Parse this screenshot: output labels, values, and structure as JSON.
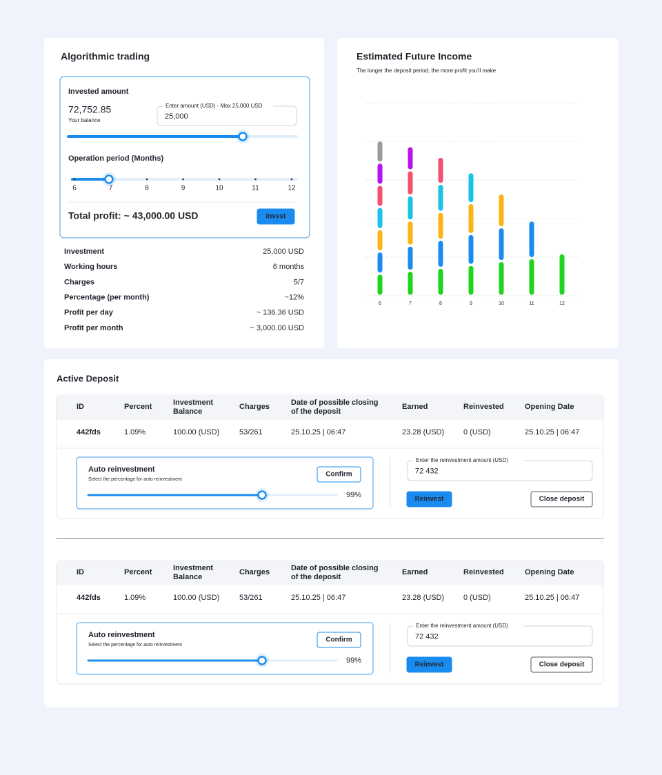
{
  "algorithmic_trading": {
    "title": "Algorithmic trading",
    "invested_amount": {
      "label": "Invested amount",
      "balance": "72,752.85",
      "balance_label": "Your balance",
      "input_label": "Enter amount (USD) - Max 25,000 USD",
      "input_value": "25,000"
    },
    "operation_period": {
      "label": "Operation period (Months)",
      "ticks": [
        "6",
        "7",
        "8",
        "9",
        "10",
        "11",
        "12"
      ]
    },
    "total_profit": {
      "label": "Total profit:",
      "value": "~ 43,000.00 USD"
    },
    "invest_button": "Invest",
    "details": [
      [
        "Investment",
        "25,000 USD"
      ],
      [
        "Working hours",
        "6 months"
      ],
      [
        "Charges",
        "5/7"
      ],
      [
        "Percentage (per month)",
        "~12%"
      ],
      [
        "Profit per day",
        "~ 136.36 USD"
      ],
      [
        "Profit per month",
        "~ 3,000.00 USD"
      ]
    ]
  },
  "chart_data": {
    "type": "bar",
    "stacked": true,
    "title": "Estimated Future Income",
    "subtitle": "The longer the deposit period, the more profit you'll make",
    "categories": [
      "6",
      "7",
      "8",
      "9",
      "10",
      "11",
      "12"
    ],
    "ylim": [
      0,
      100
    ],
    "series": [
      {
        "color": "#1ed41e",
        "values": [
          11.5,
          13,
          14.5,
          16,
          18,
          19.5,
          22
        ]
      },
      {
        "color": "#1a8cf0",
        "values": [
          11.5,
          13,
          14.5,
          16,
          17.5,
          19.5,
          null
        ]
      },
      {
        "color": "#fbb414",
        "values": [
          11.5,
          13,
          14.5,
          16,
          17.5,
          null,
          null
        ]
      },
      {
        "color": "#19c3e6",
        "values": [
          11.5,
          13,
          14.5,
          16,
          null,
          null,
          null
        ]
      },
      {
        "color": "#f5506e",
        "values": [
          11.5,
          13,
          14,
          null,
          null,
          null,
          null
        ]
      },
      {
        "color": "#b414f0",
        "values": [
          11.5,
          12.5,
          null,
          null,
          null,
          null,
          null
        ]
      },
      {
        "color": "#9a9a9a",
        "values": [
          11.5,
          null,
          null,
          null,
          null,
          null,
          null
        ]
      }
    ]
  },
  "active_deposit": {
    "title": "Active Deposit",
    "deposits": [
      {
        "columns": [
          [
            "ID"
          ],
          [
            "Percent"
          ],
          [
            "Investment",
            "Balance"
          ],
          [
            "Charges"
          ],
          [
            "Date of possible closing",
            "of the deposit"
          ],
          [
            "Earned"
          ],
          [
            "Reinvested"
          ],
          [
            "Opening Date"
          ]
        ],
        "row": [
          "442fds",
          "1.09%",
          "100.00 (USD)",
          "53/261",
          "25.10.25 | 06:47",
          "23.28 (USD)",
          "0 (USD)",
          "25.10.25 | 06:47"
        ],
        "auto_reinvestment": {
          "title": "Auto reinvestment",
          "subtitle": "Select the percentage for auto reinvestment",
          "confirm": "Confirm",
          "percent": "99%"
        },
        "reinvest_input": {
          "label": "Enter the reinvestment amount (USD)",
          "value": "72 432"
        },
        "reinvest_button": "Reinvest",
        "close_button": "Close deposit"
      },
      {
        "columns": [
          [
            "ID"
          ],
          [
            "Percent"
          ],
          [
            "Investment",
            "Balance"
          ],
          [
            "Charges"
          ],
          [
            "Date of possible closing",
            "of the deposit"
          ],
          [
            "Earned"
          ],
          [
            "Reinvested"
          ],
          [
            "Opening Date"
          ]
        ],
        "row": [
          "442fds",
          "1.09%",
          "100.00 (USD)",
          "53/261",
          "25.10.25 | 06:47",
          "23.28 (USD)",
          "0 (USD)",
          "25.10.25 | 06:47"
        ],
        "auto_reinvestment": {
          "title": "Auto reinvestment",
          "subtitle": "Select the percentage for auto reinvestment",
          "confirm": "Confirm",
          "percent": "99%"
        },
        "reinvest_input": {
          "label": "Enter the reinvestment amount (USD)",
          "value": "72 432"
        },
        "reinvest_button": "Reinvest",
        "close_button": "Close deposit"
      }
    ]
  }
}
